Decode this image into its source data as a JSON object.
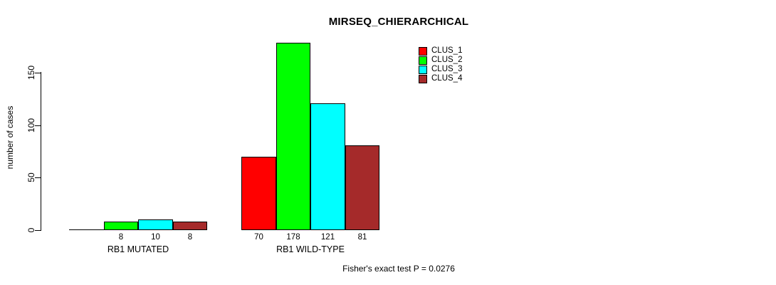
{
  "chart_data": {
    "type": "bar",
    "grouped": true,
    "title": "MIRSEQ_CHIERARCHICAL",
    "ylabel": "number of cases",
    "footnote": "Fisher's exact test P = 0.0276",
    "categories": [
      "RB1 MUTATED",
      "RB1 WILD-TYPE"
    ],
    "series": [
      {
        "name": "CLUS_1",
        "color": "#ff0000",
        "values": [
          0,
          70
        ]
      },
      {
        "name": "CLUS_2",
        "color": "#00ff00",
        "values": [
          8,
          178
        ]
      },
      {
        "name": "CLUS_3",
        "color": "#00ffff",
        "values": [
          10,
          121
        ]
      },
      {
        "name": "CLUS_4",
        "color": "#a52a2a",
        "values": [
          8,
          81
        ]
      }
    ],
    "yticks": [
      0,
      50,
      100,
      150
    ],
    "ylim": [
      0,
      185
    ],
    "grid": false,
    "legend_position": "top-right",
    "bar_labels_shown_below_axis": true,
    "zero_value_labels_hidden": true
  }
}
